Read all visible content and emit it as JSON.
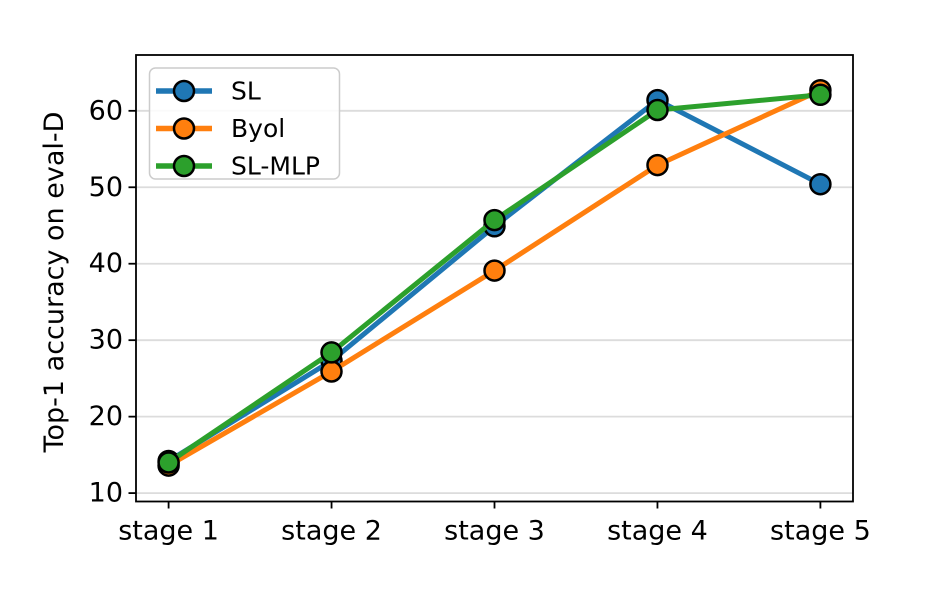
{
  "chart_data": {
    "type": "line",
    "title": "",
    "xlabel": "",
    "ylabel": "Top-1 accuracy on eval-D",
    "categories": [
      "stage 1",
      "stage 2",
      "stage 3",
      "stage 4",
      "stage 5"
    ],
    "series": [
      {
        "name": "SL",
        "color": "#1f77b4",
        "values": [
          14.2,
          27.3,
          44.9,
          61.4,
          50.4
        ]
      },
      {
        "name": "Byol",
        "color": "#ff7f0e",
        "values": [
          13.6,
          25.9,
          39.1,
          52.9,
          62.7
        ]
      },
      {
        "name": "SL-MLP",
        "color": "#2ca02c",
        "values": [
          14.0,
          28.4,
          45.7,
          60.1,
          62.1
        ]
      }
    ],
    "yticks": [
      10,
      20,
      30,
      40,
      50,
      60
    ],
    "ylim": [
      8.9,
      67.3
    ],
    "xlim": [
      -0.2,
      4.2
    ],
    "grid": "horizontal",
    "grid_color": "#dcdcdc",
    "spine_color": "#000000",
    "legend_position": "upper left",
    "legend_border_color": "#cccccc",
    "marker": "o",
    "marker_edge_color": "#000000"
  }
}
